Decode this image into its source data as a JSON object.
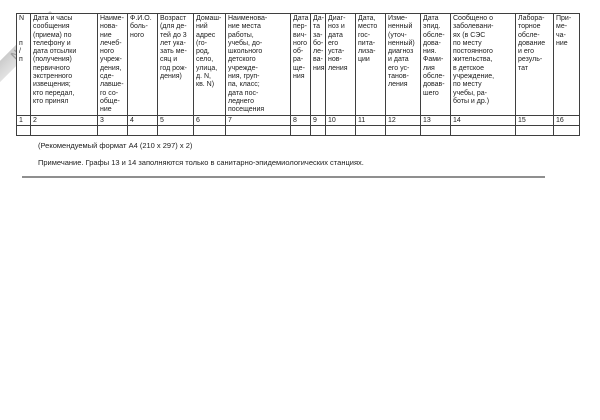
{
  "watermark": {
    "text": "No"
  },
  "table": {
    "headers": [
      "N\n\n\nп\n/\nп",
      "Дата и часы\nсообщения\n(приема) по\nтелефону и\nдата отсылки\n(получения)\nпервичного\nэкстренного\nизвещения;\nкто передал,\nкто принял",
      "Наиме-\nнова-\nние\nлечеб-\nного\nучреж-\nдения,\nсде-\nлавше-\nго со-\nобще-\nние",
      "Ф.И.О.\nболь-\nного",
      "Возраст\n(для де-\nтей до 3\nлет ука-\nзать ме-\nсяц и\nгод рож-\nдения)",
      "Домаш-\nний\nадрес\n(го-\nрод,\nсело,\nулица,\nд. N,\nкв. N)",
      "Наименова-\nние места\nработы,\nучебы, до-\nшкольного\nдетского\nучрежде-\nния, груп-\nпа, класс;\nдата пос-\nледнего\nпосещения",
      "Дата\nпер-\nвич-\nного\nоб-\nра-\nще-\nния",
      "Да-\nта\nза-\nбо-\nле-\nва-\nния",
      "Диаг-\nноз и\nдата\nего\nуста-\nнов-\nления",
      "Дата,\nместо\nгос-\nпита-\nлиза-\nции",
      "Изме-\nненный\n(уточ-\nненный)\nдиагноз\nи дата\nего ус-\nтанов-\nления",
      "Дата\nэпид.\nобсле-\nдова-\nния.\nФами-\nлия\nобсле-\nдовав-\nшего",
      "Сообщено о\nзаболевани-\nях (в СЭС\nпо месту\nпостоянного\nжительства,\nв детское\nучреждение,\nпо месту\nучебы, ра-\nботы и др.)",
      "Лабора-\nторное\nобсле-\nдование\nи его\nрезуль-\nтат",
      "При-\nме-\nча-\nние"
    ],
    "numbers": [
      "1",
      "2",
      "3",
      "4",
      "5",
      "6",
      "7",
      "8",
      "9",
      "10",
      "11",
      "12",
      "13",
      "14",
      "15",
      "16"
    ]
  },
  "footer": {
    "format_note": "(Рекомендуемый формат А4 (210 х 297) х 2)",
    "note": "Примечание. Графы 13 и 14 заполняются только в санитарно-эпидемиологических станциях."
  }
}
